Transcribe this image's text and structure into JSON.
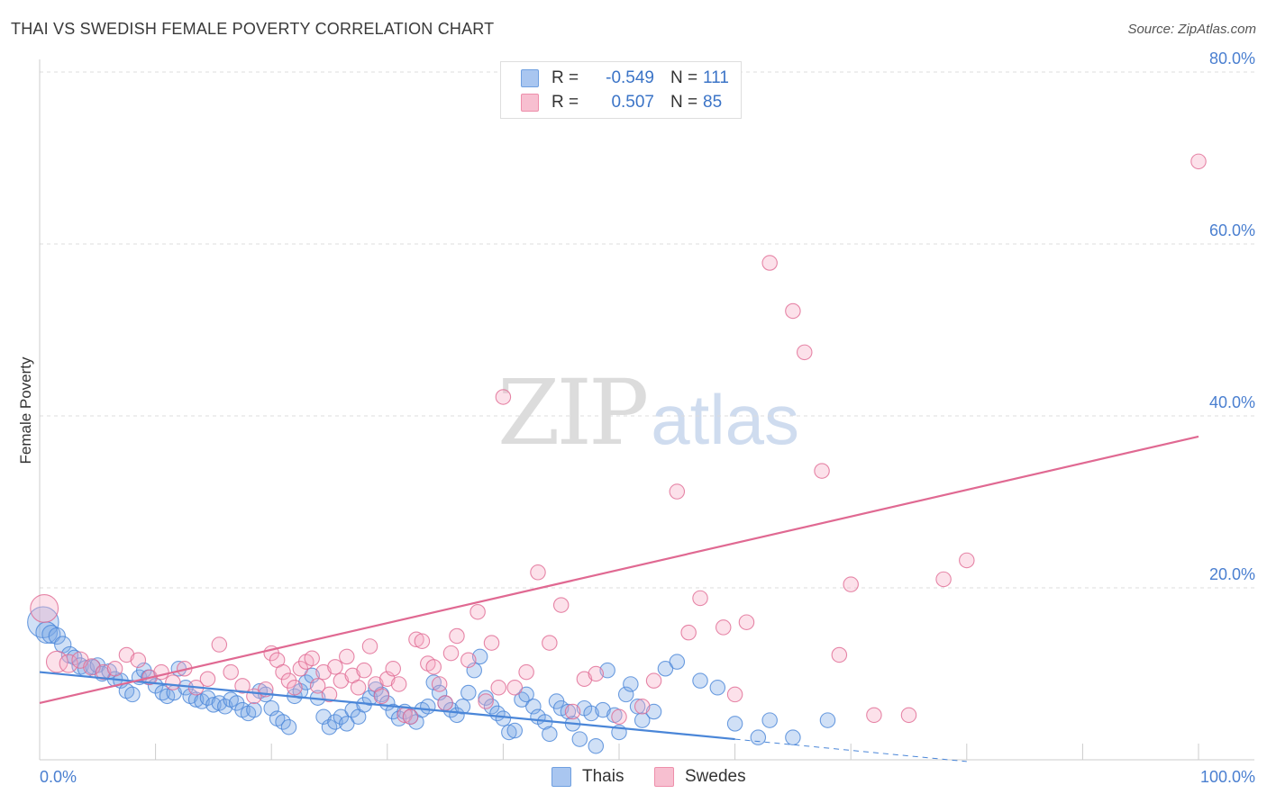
{
  "title": "THAI VS SWEDISH FEMALE POVERTY CORRELATION CHART",
  "source": "Source: ZipAtlas.com",
  "watermark": {
    "left": "ZIP",
    "right": "atlas"
  },
  "legend": {
    "rows": [
      {
        "r_label": "R =",
        "r_value": "-0.549",
        "n_label": "N =",
        "n_value": "111",
        "color": "#a9c6f0",
        "border": "#6f9fe0"
      },
      {
        "r_label": "R =",
        "r_value": "0.507",
        "n_label": "N =",
        "n_value": "85",
        "color": "#f7bfd0",
        "border": "#ee8fab"
      }
    ]
  },
  "bottom_legend": [
    {
      "label": "Thais",
      "color": "#a9c6f0",
      "border": "#6f9fe0"
    },
    {
      "label": "Swedes",
      "color": "#f7bfd0",
      "border": "#ee8fab"
    }
  ],
  "chart_data": {
    "type": "scatter",
    "title": "THAI VS SWEDISH FEMALE POVERTY CORRELATION CHART",
    "xlabel": "",
    "ylabel": "Female Poverty",
    "xlim": [
      0,
      100
    ],
    "ylim": [
      0,
      80
    ],
    "x_tick_labels": [
      "0.0%",
      "100.0%"
    ],
    "y_tick_labels": [
      "20.0%",
      "40.0%",
      "60.0%",
      "80.0%"
    ],
    "y_ticks": [
      20,
      40,
      60,
      80
    ],
    "grid": true,
    "series": [
      {
        "name": "Thais",
        "color": "#4a86d8",
        "fill": "rgba(120,165,230,0.35)",
        "trend": {
          "x0": 0,
          "y0": 10.2,
          "x1": 60,
          "y1": 2.4,
          "dash_to_x": 80,
          "dash_to_y": -0.2
        },
        "points": [
          [
            0.3,
            16,
            1.8
          ],
          [
            0.6,
            14.8,
            1.2
          ],
          [
            1,
            14.6,
            1
          ],
          [
            1.5,
            14.4,
            0.9
          ],
          [
            2,
            13.4,
            0.9
          ],
          [
            2.6,
            12.2,
            0.9
          ],
          [
            3,
            11.9,
            0.8
          ],
          [
            3.5,
            10.9,
            0.9
          ],
          [
            4,
            10.6,
            0.9
          ],
          [
            4.6,
            10.8,
            0.8
          ],
          [
            5,
            11,
            0.8
          ],
          [
            5.4,
            10,
            0.8
          ],
          [
            6,
            10.3,
            0.8
          ],
          [
            6.5,
            9.4,
            0.8
          ],
          [
            7,
            9.2,
            0.8
          ],
          [
            7.5,
            8,
            0.8
          ],
          [
            8,
            7.6,
            0.8
          ],
          [
            8.6,
            9.6,
            0.8
          ],
          [
            9,
            10.4,
            0.8
          ],
          [
            9.4,
            9.6,
            0.8
          ],
          [
            10,
            8.6,
            0.8
          ],
          [
            10.6,
            7.8,
            0.8
          ],
          [
            11,
            7.4,
            0.8
          ],
          [
            11.6,
            7.8,
            0.8
          ],
          [
            12,
            10.6,
            0.8
          ],
          [
            12.6,
            8.4,
            0.8
          ],
          [
            13,
            7.4,
            0.8
          ],
          [
            13.5,
            7,
            0.8
          ],
          [
            14,
            6.8,
            0.8
          ],
          [
            14.5,
            7.2,
            0.8
          ],
          [
            15,
            6.4,
            0.8
          ],
          [
            15.5,
            6.6,
            0.8
          ],
          [
            16,
            6.2,
            0.8
          ],
          [
            16.5,
            7,
            0.8
          ],
          [
            17,
            6.6,
            0.8
          ],
          [
            17.5,
            5.8,
            0.8
          ],
          [
            18,
            5.4,
            0.8
          ],
          [
            18.5,
            5.8,
            0.8
          ],
          [
            19,
            8,
            0.8
          ],
          [
            19.5,
            7.6,
            0.8
          ],
          [
            20,
            6,
            0.8
          ],
          [
            20.5,
            4.8,
            0.8
          ],
          [
            21,
            4.4,
            0.8
          ],
          [
            21.5,
            3.8,
            0.8
          ],
          [
            22,
            7.4,
            0.8
          ],
          [
            22.5,
            8,
            0.8
          ],
          [
            23,
            9,
            0.8
          ],
          [
            23.5,
            9.8,
            0.8
          ],
          [
            24,
            7.2,
            0.8
          ],
          [
            24.5,
            5,
            0.8
          ],
          [
            25,
            3.8,
            0.8
          ],
          [
            25.5,
            4.4,
            0.8
          ],
          [
            26,
            5,
            0.8
          ],
          [
            26.5,
            4.2,
            0.8
          ],
          [
            27,
            5.8,
            0.8
          ],
          [
            27.5,
            5,
            0.8
          ],
          [
            28,
            6.4,
            0.8
          ],
          [
            28.5,
            7.2,
            0.8
          ],
          [
            29,
            8.2,
            0.8
          ],
          [
            29.5,
            7.6,
            0.8
          ],
          [
            30,
            6.6,
            0.8
          ],
          [
            30.5,
            5.6,
            0.8
          ],
          [
            31,
            4.8,
            0.8
          ],
          [
            31.5,
            5.6,
            0.8
          ],
          [
            32,
            5,
            0.8
          ],
          [
            32.5,
            4.4,
            0.8
          ],
          [
            33,
            5.8,
            0.8
          ],
          [
            33.5,
            6.2,
            0.8
          ],
          [
            34,
            9,
            0.8
          ],
          [
            34.5,
            7.8,
            0.8
          ],
          [
            35,
            6.6,
            0.8
          ],
          [
            35.5,
            5.8,
            0.8
          ],
          [
            36,
            5.2,
            0.8
          ],
          [
            36.5,
            6.2,
            0.8
          ],
          [
            37,
            7.8,
            0.8
          ],
          [
            37.5,
            10.4,
            0.8
          ],
          [
            38,
            12,
            0.8
          ],
          [
            38.5,
            7.2,
            0.8
          ],
          [
            39,
            6.2,
            0.8
          ],
          [
            39.5,
            5.4,
            0.8
          ],
          [
            40,
            4.8,
            0.8
          ],
          [
            40.5,
            3.2,
            0.8
          ],
          [
            41,
            3.4,
            0.8
          ],
          [
            41.6,
            7,
            0.8
          ],
          [
            42,
            7.6,
            0.8
          ],
          [
            42.6,
            6.2,
            0.8
          ],
          [
            43,
            5,
            0.8
          ],
          [
            43.6,
            4.4,
            0.8
          ],
          [
            44,
            3,
            0.8
          ],
          [
            44.6,
            6.8,
            0.8
          ],
          [
            45,
            6,
            0.8
          ],
          [
            45.6,
            5.6,
            0.8
          ],
          [
            46,
            4.2,
            0.8
          ],
          [
            46.6,
            2.4,
            0.8
          ],
          [
            47,
            6,
            0.8
          ],
          [
            47.6,
            5.4,
            0.8
          ],
          [
            48,
            1.6,
            0.8
          ],
          [
            48.6,
            5.8,
            0.8
          ],
          [
            49,
            10.4,
            0.8
          ],
          [
            49.6,
            5.2,
            0.8
          ],
          [
            50,
            3.2,
            0.8
          ],
          [
            50.6,
            7.6,
            0.8
          ],
          [
            51,
            8.8,
            0.8
          ],
          [
            51.6,
            6.2,
            0.8
          ],
          [
            52,
            4.6,
            0.8
          ],
          [
            53,
            5.6,
            0.8
          ],
          [
            54,
            10.6,
            0.8
          ],
          [
            55,
            11.4,
            0.8
          ],
          [
            57,
            9.2,
            0.8
          ],
          [
            58.5,
            8.4,
            0.8
          ],
          [
            60,
            4.2,
            0.8
          ],
          [
            62,
            2.6,
            0.8
          ],
          [
            63,
            4.6,
            0.8
          ],
          [
            65,
            2.6,
            0.8
          ],
          [
            68,
            4.6,
            0.8
          ]
        ]
      },
      {
        "name": "Swedes",
        "color": "#e06992",
        "fill": "rgba(245,170,195,0.35)",
        "trend": {
          "x0": 0,
          "y0": 6.6,
          "x1": 100,
          "y1": 37.6
        },
        "points": [
          [
            0.4,
            17.6,
            1.6
          ],
          [
            1.5,
            11.4,
            1.2
          ],
          [
            2.5,
            11.2,
            1
          ],
          [
            3.5,
            11.6,
            0.9
          ],
          [
            4.5,
            10.8,
            0.9
          ],
          [
            5.5,
            10.2,
            0.8
          ],
          [
            6.5,
            10.6,
            0.8
          ],
          [
            7.5,
            12.2,
            0.8
          ],
          [
            8.5,
            11.6,
            0.8
          ],
          [
            9.5,
            9.6,
            0.8
          ],
          [
            10.5,
            10.2,
            0.8
          ],
          [
            11.5,
            9,
            0.8
          ],
          [
            12.5,
            10.6,
            0.8
          ],
          [
            13.5,
            8.4,
            0.8
          ],
          [
            14.5,
            9.4,
            0.8
          ],
          [
            15.5,
            13.4,
            0.8
          ],
          [
            16.5,
            10.2,
            0.8
          ],
          [
            17.5,
            8.6,
            0.8
          ],
          [
            18.5,
            7.4,
            0.8
          ],
          [
            19.5,
            8.2,
            0.8
          ],
          [
            20,
            12.4,
            0.8
          ],
          [
            20.5,
            11.6,
            0.8
          ],
          [
            21,
            10.2,
            0.8
          ],
          [
            21.5,
            9.2,
            0.8
          ],
          [
            22,
            8.4,
            0.8
          ],
          [
            22.5,
            10.6,
            0.8
          ],
          [
            23,
            11.4,
            0.8
          ],
          [
            23.5,
            11.8,
            0.8
          ],
          [
            24,
            8.6,
            0.8
          ],
          [
            24.5,
            10.2,
            0.8
          ],
          [
            25,
            7.6,
            0.8
          ],
          [
            25.5,
            10.8,
            0.8
          ],
          [
            26,
            9.2,
            0.8
          ],
          [
            26.5,
            12,
            0.8
          ],
          [
            27,
            9.8,
            0.8
          ],
          [
            27.5,
            8.4,
            0.8
          ],
          [
            28,
            10.4,
            0.8
          ],
          [
            28.5,
            13.2,
            0.8
          ],
          [
            29,
            8.8,
            0.8
          ],
          [
            29.5,
            7.4,
            0.8
          ],
          [
            30,
            9.4,
            0.8
          ],
          [
            30.5,
            10.6,
            0.8
          ],
          [
            31,
            8.8,
            0.8
          ],
          [
            31.5,
            5.2,
            0.8
          ],
          [
            32,
            5,
            0.8
          ],
          [
            32.5,
            14,
            0.8
          ],
          [
            33,
            13.8,
            0.8
          ],
          [
            33.5,
            11.2,
            0.8
          ],
          [
            34,
            10.8,
            0.8
          ],
          [
            34.5,
            8.8,
            0.8
          ],
          [
            35,
            6.6,
            0.8
          ],
          [
            35.5,
            12.4,
            0.8
          ],
          [
            36,
            14.4,
            0.8
          ],
          [
            37,
            11.6,
            0.8
          ],
          [
            37.8,
            17.2,
            0.8
          ],
          [
            38.5,
            6.8,
            0.8
          ],
          [
            39,
            13.6,
            0.8
          ],
          [
            39.6,
            8.4,
            0.8
          ],
          [
            40,
            42.2,
            0.8
          ],
          [
            41,
            8.4,
            0.8
          ],
          [
            42,
            10.2,
            0.8
          ],
          [
            43,
            21.8,
            0.8
          ],
          [
            44,
            13.6,
            0.8
          ],
          [
            45,
            18,
            0.8
          ],
          [
            46,
            5.6,
            0.8
          ],
          [
            47,
            9.4,
            0.8
          ],
          [
            48,
            10,
            0.8
          ],
          [
            50,
            5,
            0.8
          ],
          [
            52,
            6.2,
            0.8
          ],
          [
            53,
            9.2,
            0.8
          ],
          [
            55,
            31.2,
            0.8
          ],
          [
            56,
            14.8,
            0.8
          ],
          [
            57,
            18.8,
            0.8
          ],
          [
            59,
            15.4,
            0.8
          ],
          [
            60,
            7.6,
            0.8
          ],
          [
            61,
            16,
            0.8
          ],
          [
            63,
            57.8,
            0.8
          ],
          [
            65,
            52.2,
            0.8
          ],
          [
            66,
            47.4,
            0.8
          ],
          [
            67.5,
            33.6,
            0.8
          ],
          [
            69,
            12.2,
            0.8
          ],
          [
            70,
            20.4,
            0.8
          ],
          [
            72,
            5.2,
            0.8
          ],
          [
            75,
            5.2,
            0.8
          ],
          [
            78,
            21,
            0.8
          ],
          [
            80,
            23.2,
            0.8
          ],
          [
            100,
            69.6,
            0.8
          ]
        ]
      }
    ]
  }
}
